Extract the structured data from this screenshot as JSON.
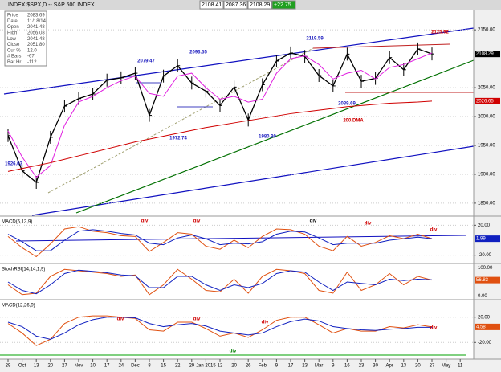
{
  "header": {
    "title": "INDEX:$SPX,D -- S&P 500 INDEX",
    "quotes": [
      "2108.41",
      "2087.36",
      "2108.29",
      "+22.75"
    ]
  },
  "info": [
    [
      "Price",
      "2083.69"
    ],
    [
      "Date",
      "11/18/14"
    ],
    [
      "Open",
      "2041.48"
    ],
    [
      "High",
      "2056.08"
    ],
    [
      "Low",
      "2041.48"
    ],
    [
      "Close",
      "2051.80"
    ],
    [
      "Cur %",
      "12.0"
    ],
    [
      "# Bars",
      "-67"
    ],
    [
      "Bar Hr",
      "-112"
    ]
  ],
  "chart_data": [
    {
      "type": "line",
      "title": "S&P 500",
      "categories": [
        "29",
        "Oct",
        "13",
        "20",
        "27",
        "Nov",
        "10",
        "17",
        "24",
        "Dec",
        "8",
        "15",
        "22",
        "29",
        "Jan 2015",
        "12",
        "20",
        "26",
        "Feb",
        "9",
        "17",
        "23",
        "Mar",
        "9",
        "16",
        "23",
        "30",
        "Apr",
        "13",
        "20",
        "27",
        "May",
        "11"
      ],
      "ylim": [
        1829,
        2185
      ],
      "yticks": [
        {
          "value": 2150,
          "label": "2150.00"
        },
        {
          "value": 2050,
          "label": "2050.00"
        },
        {
          "value": 2000,
          "label": "2000.00"
        },
        {
          "value": 1950,
          "label": "1950.00"
        },
        {
          "value": 1900,
          "label": "1900.00"
        },
        {
          "value": 1850,
          "label": "1850.00"
        }
      ],
      "grid": true,
      "series": [
        {
          "name": "Price",
          "color": "#000000",
          "last_value_tag": true,
          "values": [
            1967,
            1906,
            1886,
            1964,
            2018,
            2031,
            2039,
            2063,
            2067,
            2075,
            2002,
            2070,
            2088,
            2058,
            2044,
            2019,
            2051,
            1994,
            2055,
            2096,
            2110,
            2104,
            2071,
            2053,
            2108,
            2061,
            2066,
            2102,
            2081,
            2117,
            2108.29,
            null,
            null
          ]
        },
        {
          "name": "MA",
          "color": "#e020e0",
          "values": [
            1975,
            1930,
            1895,
            1915,
            1985,
            2025,
            2035,
            2050,
            2062,
            2070,
            2040,
            2035,
            2070,
            2075,
            2050,
            2030,
            2035,
            2025,
            2030,
            2075,
            2100,
            2105,
            2090,
            2065,
            2075,
            2080,
            2065,
            2085,
            2090,
            2100,
            2110,
            null,
            null
          ]
        },
        {
          "name": "200.DMA",
          "color": "#d00000",
          "last_value_tag": true,
          "values": [
            1905,
            1910,
            1915,
            1920,
            1926,
            1932,
            1938,
            1944,
            1950,
            1956,
            1961,
            1966,
            1971,
            1976,
            1981,
            1985,
            1989,
            1993,
            1997,
            2001,
            2005,
            2008,
            2011,
            2014,
            2017,
            2019,
            2021,
            2023,
            2024,
            2025,
            2026.65,
            null,
            null
          ]
        }
      ],
      "annotations": [
        {
          "text": "2079.47",
          "color": "#2020c0"
        },
        {
          "text": "2093.55",
          "color": "#2020c0"
        },
        {
          "text": "1972.74",
          "color": "#2020c0"
        },
        {
          "text": "2119.59",
          "color": "#2020c0"
        },
        {
          "text": "1980.90",
          "color": "#2020c0"
        },
        {
          "text": "2039.69",
          "color": "#2020c0"
        },
        {
          "text": "2125.92",
          "color": "#d00000"
        },
        {
          "text": "1926.03",
          "color": "#2020c0"
        },
        {
          "text": "200.DMA",
          "color": "#d00000"
        }
      ]
    },
    {
      "type": "line",
      "title": "MACD(6,13,9)",
      "ylim": [
        -30,
        30
      ],
      "yticks": [
        {
          "value": 20,
          "label": "20.00"
        },
        {
          "value": -20,
          "label": "-20.00"
        }
      ],
      "grid": true,
      "series": [
        {
          "name": "MACD",
          "color": "#e05010",
          "values": [
            5,
            -10,
            -22,
            -5,
            15,
            18,
            12,
            10,
            6,
            5,
            -15,
            -3,
            10,
            8,
            -8,
            -12,
            0,
            -10,
            5,
            15,
            14,
            8,
            -8,
            -14,
            5,
            -8,
            -3,
            6,
            2,
            8,
            2,
            null,
            null
          ]
        },
        {
          "name": "Signal",
          "color": "#1020c0",
          "last_value_tag": true,
          "values": [
            8,
            -2,
            -14,
            -14,
            0,
            12,
            14,
            12,
            9,
            7,
            -4,
            -6,
            3,
            7,
            2,
            -6,
            -4,
            -5,
            -2,
            8,
            12,
            11,
            3,
            -6,
            -4,
            -4,
            -4,
            0,
            2,
            4,
            1.99,
            null,
            null
          ]
        }
      ],
      "annotations": [
        {
          "text": "div",
          "color": "#d00000"
        },
        {
          "text": "div",
          "color": "#d00000"
        },
        {
          "text": "div",
          "color": "#000000"
        },
        {
          "text": "div",
          "color": "#d00000"
        },
        {
          "text": "div",
          "color": "#d00000"
        }
      ]
    },
    {
      "type": "line",
      "title": "StochRSI(14,14,1,9)",
      "ylim": [
        -10,
        110
      ],
      "yticks": [
        {
          "value": 100,
          "label": "100.00"
        },
        {
          "value": 0,
          "label": "0.00"
        }
      ],
      "grid": true,
      "series": [
        {
          "name": "StochRSI",
          "color": "#e05010",
          "last_value_tag": true,
          "values": [
            40,
            5,
            10,
            70,
            95,
            90,
            85,
            80,
            70,
            75,
            5,
            40,
            95,
            60,
            20,
            15,
            60,
            10,
            70,
            95,
            90,
            80,
            20,
            10,
            85,
            20,
            40,
            80,
            40,
            70,
            56.83,
            null,
            null
          ]
        },
        {
          "name": "Signal",
          "color": "#1020c0",
          "values": [
            50,
            20,
            8,
            40,
            80,
            92,
            88,
            83,
            75,
            72,
            30,
            30,
            70,
            70,
            40,
            20,
            40,
            30,
            45,
            80,
            90,
            85,
            50,
            20,
            50,
            45,
            40,
            60,
            55,
            60,
            58,
            null,
            null
          ]
        }
      ]
    },
    {
      "type": "line",
      "title": "MACD(12,26,9)",
      "ylim": [
        -45,
        45
      ],
      "yticks": [
        {
          "value": 20,
          "label": "20.00"
        },
        {
          "value": -20,
          "label": "-20.00"
        }
      ],
      "grid": true,
      "series": [
        {
          "name": "MACD",
          "color": "#e05010",
          "last_value_tag": true,
          "values": [
            10,
            -5,
            -25,
            -15,
            10,
            20,
            22,
            22,
            20,
            18,
            0,
            -2,
            12,
            12,
            2,
            -10,
            -5,
            -12,
            0,
            15,
            20,
            20,
            8,
            -5,
            2,
            -2,
            -2,
            5,
            3,
            8,
            4.58,
            null,
            null
          ]
        },
        {
          "name": "Signal",
          "color": "#1020c0",
          "values": [
            12,
            5,
            -10,
            -15,
            -5,
            8,
            16,
            20,
            20,
            19,
            10,
            5,
            8,
            10,
            6,
            -2,
            -5,
            -8,
            -5,
            5,
            13,
            17,
            14,
            5,
            2,
            0,
            -1,
            1,
            2,
            4,
            4,
            null,
            null
          ]
        }
      ],
      "annotations": [
        {
          "text": "div",
          "color": "#d00000"
        },
        {
          "text": "div",
          "color": "#d00000"
        },
        {
          "text": "div",
          "color": "#d00000"
        },
        {
          "text": "div",
          "color": "#008000"
        },
        {
          "text": "div",
          "color": "#d00000"
        }
      ]
    }
  ]
}
